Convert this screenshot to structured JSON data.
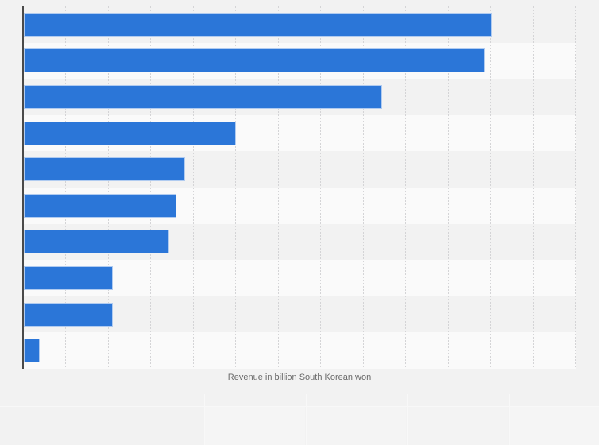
{
  "page": {
    "background": "#f2f2f2"
  },
  "chart": {
    "xlabel": "Revenue in billion South Korean won",
    "colors": {
      "bar_fill": "#2b76d8",
      "bar_edge": "#b0cbf0",
      "axis_line": "#4a4a4a",
      "gridline": "#d4d4d6",
      "row_stripe_light": "#fafafa",
      "label_text": "#6a6a6a"
    }
  },
  "chart_data": {
    "type": "bar",
    "orientation": "horizontal",
    "title": "",
    "categories": [
      "",
      "",
      "",
      "",
      "",
      "",
      "",
      "",
      "",
      ""
    ],
    "category_labels_visible": false,
    "values": [
      11.02,
      10.85,
      8.43,
      5.0,
      3.79,
      3.59,
      3.43,
      2.1,
      2.09,
      0.37
    ],
    "xlabel": "Revenue in billion South Korean won",
    "ylabel": "",
    "xlim": [
      0,
      13
    ],
    "xtick_interval": 1,
    "xtick_labels_visible": false,
    "grid": "vertical dashed gridlines every interval, unlabeled",
    "legend": "none",
    "units_note": "axis tick labels not shown in image; values measured in gridline intervals"
  }
}
